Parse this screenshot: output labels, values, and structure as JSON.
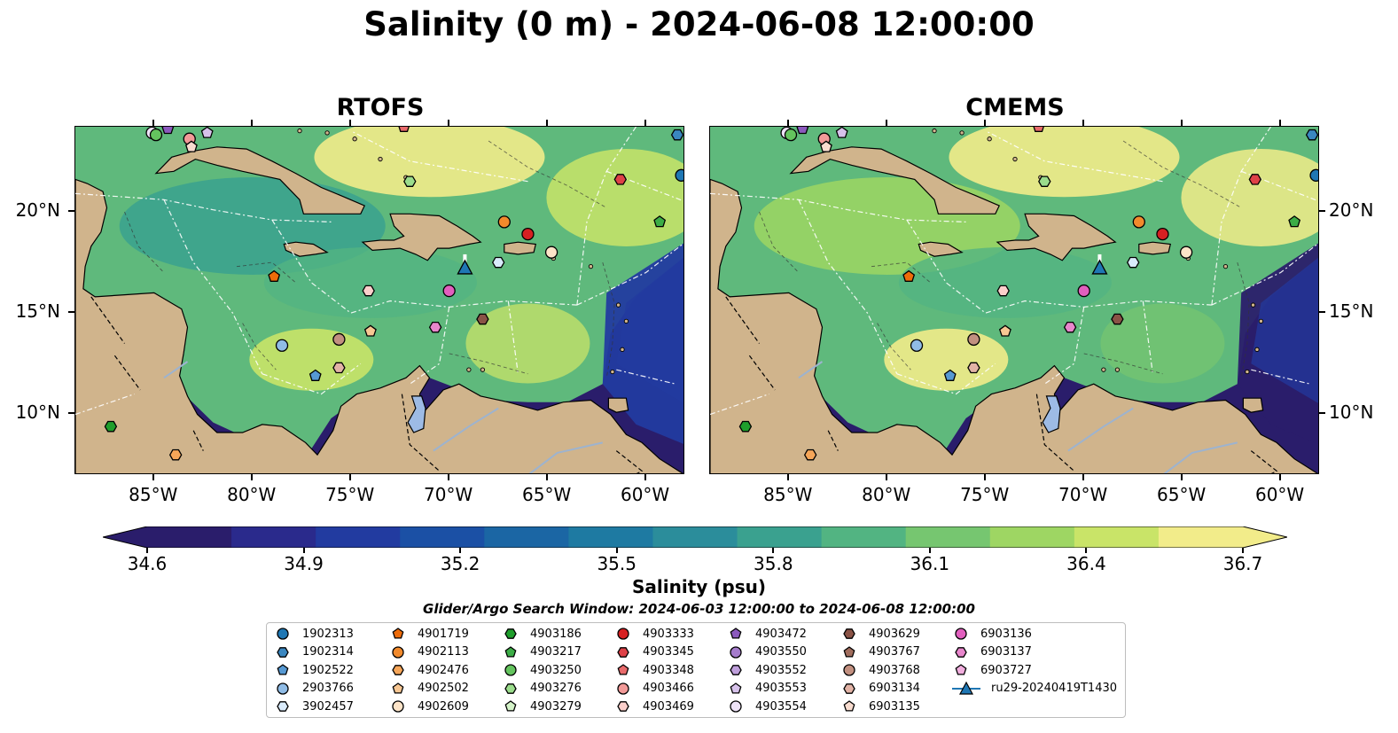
{
  "figure": {
    "title": "Salinity (0 m) - 2024-06-08 12:00:00",
    "panels": [
      {
        "label": "RTOFS"
      },
      {
        "label": "CMEMS"
      }
    ]
  },
  "axes": {
    "x_ticks": [
      "85°W",
      "80°W",
      "75°W",
      "70°W",
      "65°W",
      "60°W"
    ],
    "y_ticks_left": [
      "20°N",
      "15°N",
      "10°N"
    ],
    "y_ticks_right": [
      "20°N",
      "15°N",
      "10°N"
    ]
  },
  "colorbar": {
    "label": "Salinity (psu)",
    "ticks": [
      "34.6",
      "34.9",
      "35.2",
      "35.5",
      "35.8",
      "36.1",
      "36.4",
      "36.7"
    ],
    "colors": [
      "#2a1d6b",
      "#2a2a8c",
      "#223ba0",
      "#1b50a5",
      "#1b66a4",
      "#1e7aa2",
      "#2b8d9b",
      "#3aa18f",
      "#52b482",
      "#76c670",
      "#9ed663",
      "#c9e468",
      "#f2ec8a"
    ],
    "extend": "both"
  },
  "search_window": "Glider/Argo Search Window: 2024-06-03 12:00:00 to 2024-06-08 12:00:00",
  "legend": {
    "items": [
      {
        "label": "1902313",
        "marker": "circle",
        "color": "#1f77b4"
      },
      {
        "label": "1902314",
        "marker": "hexagon",
        "color": "#3a87c0"
      },
      {
        "label": "1902522",
        "marker": "pentagon",
        "color": "#5699d3"
      },
      {
        "label": "2903766",
        "marker": "circle",
        "color": "#90bce6"
      },
      {
        "label": "3902457",
        "marker": "hexagon",
        "color": "#d9ebfb"
      },
      {
        "label": "4901719",
        "marker": "pentagon",
        "color": "#ee6c0a"
      },
      {
        "label": "4902113",
        "marker": "circle",
        "color": "#f28a2c"
      },
      {
        "label": "4902476",
        "marker": "hexagon",
        "color": "#f6a659"
      },
      {
        "label": "4902502",
        "marker": "pentagon",
        "color": "#f8c793"
      },
      {
        "label": "4902609",
        "marker": "circle",
        "color": "#fde4c8"
      },
      {
        "label": "4903186",
        "marker": "hexagon",
        "color": "#1f9e2c"
      },
      {
        "label": "4903217",
        "marker": "pentagon",
        "color": "#3cad46"
      },
      {
        "label": "4903250",
        "marker": "circle",
        "color": "#64c45e"
      },
      {
        "label": "4903276",
        "marker": "hexagon",
        "color": "#9bdd8c"
      },
      {
        "label": "4903279",
        "marker": "pentagon",
        "color": "#d4f3c8"
      },
      {
        "label": "4903333",
        "marker": "circle",
        "color": "#d62022"
      },
      {
        "label": "4903345",
        "marker": "hexagon",
        "color": "#de4147"
      },
      {
        "label": "4903348",
        "marker": "pentagon",
        "color": "#e86a6b"
      },
      {
        "label": "4903466",
        "marker": "circle",
        "color": "#f29a98"
      },
      {
        "label": "4903469",
        "marker": "hexagon",
        "color": "#fbcfcb"
      },
      {
        "label": "4903472",
        "marker": "pentagon",
        "color": "#8b59bd"
      },
      {
        "label": "4903550",
        "marker": "circle",
        "color": "#a57ccc"
      },
      {
        "label": "4903552",
        "marker": "hexagon",
        "color": "#bf9fdc"
      },
      {
        "label": "4903553",
        "marker": "pentagon",
        "color": "#d7c2eb"
      },
      {
        "label": "4903554",
        "marker": "circle",
        "color": "#ede2f7"
      },
      {
        "label": "4903629",
        "marker": "hexagon",
        "color": "#8a5346"
      },
      {
        "label": "4903767",
        "marker": "pentagon",
        "color": "#a16d5d"
      },
      {
        "label": "4903768",
        "marker": "circle",
        "color": "#c29080"
      },
      {
        "label": "6903134",
        "marker": "hexagon",
        "color": "#e2b3a6"
      },
      {
        "label": "6903135",
        "marker": "pentagon",
        "color": "#f8dccf"
      },
      {
        "label": "6903136",
        "marker": "circle",
        "color": "#e15fbe"
      },
      {
        "label": "6903137",
        "marker": "hexagon",
        "color": "#e886cc"
      },
      {
        "label": "6903727",
        "marker": "pentagon",
        "color": "#f1aede"
      },
      {
        "label": "ru29-20240419T1430",
        "marker": "triangle-line",
        "color": "#1f77b4"
      }
    ]
  },
  "chart_data": {
    "type": "map",
    "variable": "Salinity (psu)",
    "depth_m": 0,
    "time": "2024-06-08 12:00:00",
    "lon_range": [
      -89,
      -58
    ],
    "lat_range": [
      7,
      24.2
    ],
    "color_range": [
      34.6,
      36.7
    ],
    "panels": [
      "RTOFS",
      "CMEMS"
    ],
    "stations": [
      {
        "id": "1902313",
        "lon": -58.2,
        "lat": 21.8
      },
      {
        "id": "1902314",
        "lon": -58.4,
        "lat": 23.8
      },
      {
        "id": "4903217",
        "lon": -59.3,
        "lat": 19.5
      },
      {
        "id": "4903345",
        "lon": -61.3,
        "lat": 21.6
      },
      {
        "id": "4903333",
        "lon": -66.0,
        "lat": 18.9
      },
      {
        "id": "4902113",
        "lon": -67.2,
        "lat": 19.5
      },
      {
        "id": "4902609",
        "lon": -64.8,
        "lat": 18.0
      },
      {
        "id": "3902457",
        "lon": -67.5,
        "lat": 17.5
      },
      {
        "id": "6903136",
        "lon": -70.0,
        "lat": 16.1
      },
      {
        "id": "4903629",
        "lon": -68.3,
        "lat": 14.7
      },
      {
        "id": "6903137",
        "lon": -70.7,
        "lat": 14.3
      },
      {
        "id": "4903469",
        "lon": -74.1,
        "lat": 16.1
      },
      {
        "id": "4901719",
        "lon": -78.9,
        "lat": 16.8
      },
      {
        "id": "4902502",
        "lon": -74.0,
        "lat": 14.1
      },
      {
        "id": "4903768",
        "lon": -75.6,
        "lat": 13.7
      },
      {
        "id": "2903766",
        "lon": -78.5,
        "lat": 13.4
      },
      {
        "id": "1902522",
        "lon": -76.8,
        "lat": 11.9
      },
      {
        "id": "6903134",
        "lon": -75.6,
        "lat": 12.3
      },
      {
        "id": "4903276",
        "lon": -72.0,
        "lat": 21.5
      },
      {
        "id": "4903186",
        "lon": -87.2,
        "lat": 9.4
      },
      {
        "id": "4902476",
        "lon": -83.9,
        "lat": 8.0
      },
      {
        "id": "4903554",
        "lon": -85.1,
        "lat": 23.9
      },
      {
        "id": "4903472",
        "lon": -84.3,
        "lat": 24.1
      },
      {
        "id": "4903466",
        "lon": -83.2,
        "lat": 23.6
      },
      {
        "id": "6903135",
        "lon": -83.1,
        "lat": 23.2
      },
      {
        "id": "4903553",
        "lon": -82.3,
        "lat": 23.9
      },
      {
        "id": "4903250",
        "lon": -84.9,
        "lat": 23.8
      },
      {
        "id": "4903348",
        "lon": -72.3,
        "lat": 24.2
      },
      {
        "id": "ru29-20240419T1430",
        "lon": -69.2,
        "lat": 17.2
      }
    ]
  }
}
